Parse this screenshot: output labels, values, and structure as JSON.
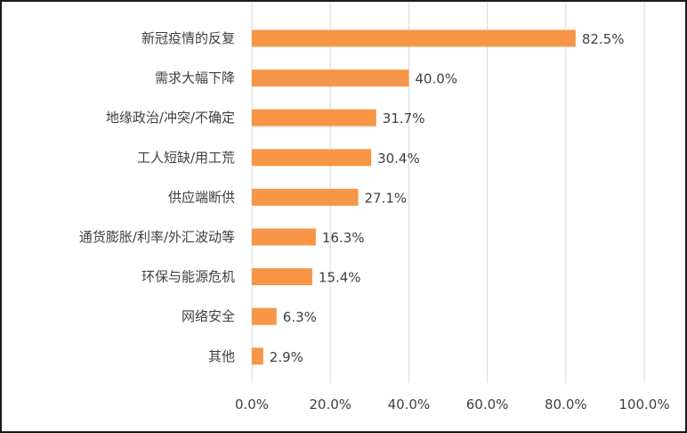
{
  "chart_data": {
    "type": "bar",
    "orientation": "horizontal",
    "title": "",
    "xlabel": "",
    "ylabel": "",
    "categories": [
      "新冠疫情的反复",
      "需求大幅下降",
      "地缘政治/冲突/不确定",
      "工人短缺/用工荒",
      "供应端断供",
      "通货膨胀/利率/外汇波动等",
      "环保与能源危机",
      "网络安全",
      "其他"
    ],
    "values": [
      82.5,
      40.0,
      31.7,
      30.4,
      27.1,
      16.3,
      15.4,
      6.3,
      2.9
    ],
    "value_labels": [
      "82.5%",
      "40.0%",
      "31.7%",
      "30.4%",
      "27.1%",
      "16.3%",
      "15.4%",
      "6.3%",
      "2.9%"
    ],
    "xlim": [
      0,
      100
    ],
    "xticks": [
      0,
      20,
      40,
      60,
      80,
      100
    ],
    "xtick_labels": [
      "0.0%",
      "20.0%",
      "40.0%",
      "60.0%",
      "80.0%",
      "100.0%"
    ],
    "grid": "vertical",
    "legend": "none",
    "colors": {
      "bar": "#F79646",
      "grid": "#D9D9D9",
      "text": "#404040"
    }
  }
}
